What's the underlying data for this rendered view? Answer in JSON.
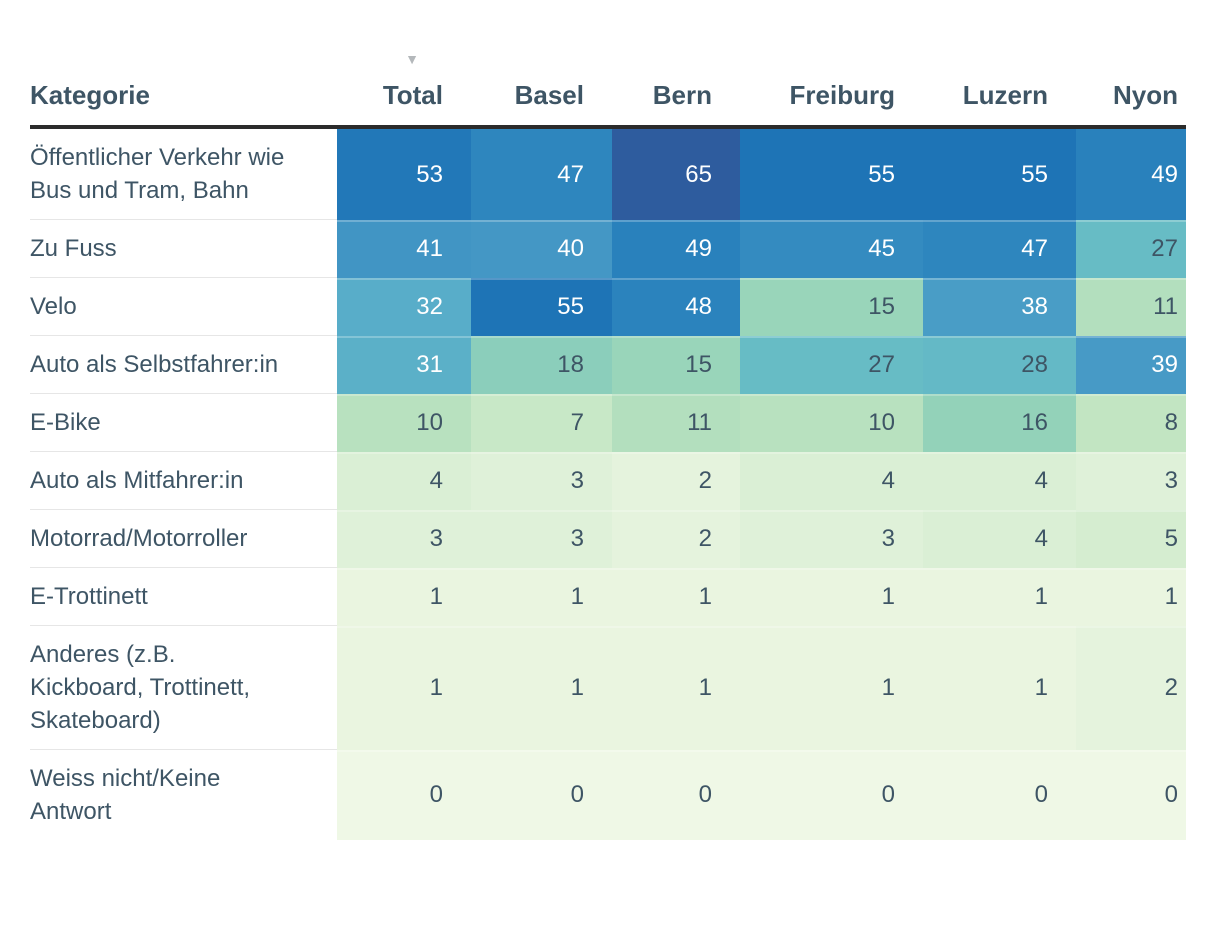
{
  "table": {
    "sort_icon": "▼"
  },
  "chart_data": {
    "type": "heatmap",
    "title": "",
    "row_label_header": "Kategorie",
    "columns": [
      "Total",
      "Basel",
      "Bern",
      "Freiburg",
      "Luzern",
      "Nyon"
    ],
    "rows": [
      {
        "category": "Öffentlicher Verkehr wie Bus und Tram, Bahn",
        "values": [
          53,
          47,
          65,
          55,
          55,
          49
        ]
      },
      {
        "category": "Zu Fuss",
        "values": [
          41,
          40,
          49,
          45,
          47,
          27
        ]
      },
      {
        "category": "Velo",
        "values": [
          32,
          55,
          48,
          15,
          38,
          11
        ]
      },
      {
        "category": "Auto als Selbstfahrer:in",
        "values": [
          31,
          18,
          15,
          27,
          28,
          39
        ]
      },
      {
        "category": "E-Bike",
        "values": [
          10,
          7,
          11,
          10,
          16,
          8
        ]
      },
      {
        "category": "Auto als Mitfahrer:in",
        "values": [
          4,
          3,
          2,
          4,
          4,
          3
        ]
      },
      {
        "category": "Motorrad/Motorroller",
        "values": [
          3,
          3,
          2,
          3,
          4,
          5
        ]
      },
      {
        "category": "E-Trottinett",
        "values": [
          1,
          1,
          1,
          1,
          1,
          1
        ]
      },
      {
        "category": "Anderes (z.B. Kickboard, Trottinett, Skateboard)",
        "values": [
          1,
          1,
          1,
          1,
          1,
          2
        ]
      },
      {
        "category": "Weiss nicht/Keine Antwort",
        "values": [
          0,
          0,
          0,
          0,
          0,
          0
        ]
      }
    ],
    "value_range": [
      0,
      65
    ],
    "sort": {
      "column": "Total",
      "direction": "desc"
    },
    "legend": "none",
    "grid": "off"
  },
  "colors": {
    "scale_stops": [
      [
        0,
        "#eff8e6"
      ],
      [
        1,
        "#eaf5e0"
      ],
      [
        3,
        "#dff1d9"
      ],
      [
        5,
        "#d5edd0"
      ],
      [
        8,
        "#c2e5c2"
      ],
      [
        11,
        "#b3dfbe"
      ],
      [
        16,
        "#93d2b9"
      ],
      [
        20,
        "#82cabc"
      ],
      [
        27,
        "#67bcc5"
      ],
      [
        32,
        "#58adc9"
      ],
      [
        40,
        "#4497c5"
      ],
      [
        48,
        "#2b83bd"
      ],
      [
        55,
        "#1e74b6"
      ],
      [
        65,
        "#2e5c9e"
      ]
    ],
    "text_dark": "#3e5565",
    "text_light": "#ffffff",
    "text_switch_value": 30,
    "header_text": "#3e5565",
    "header_border": "#2b2b2b",
    "row_divider": "#e6e6e6",
    "sort_arrow": "#b4b8bb",
    "background": "#ffffff"
  }
}
